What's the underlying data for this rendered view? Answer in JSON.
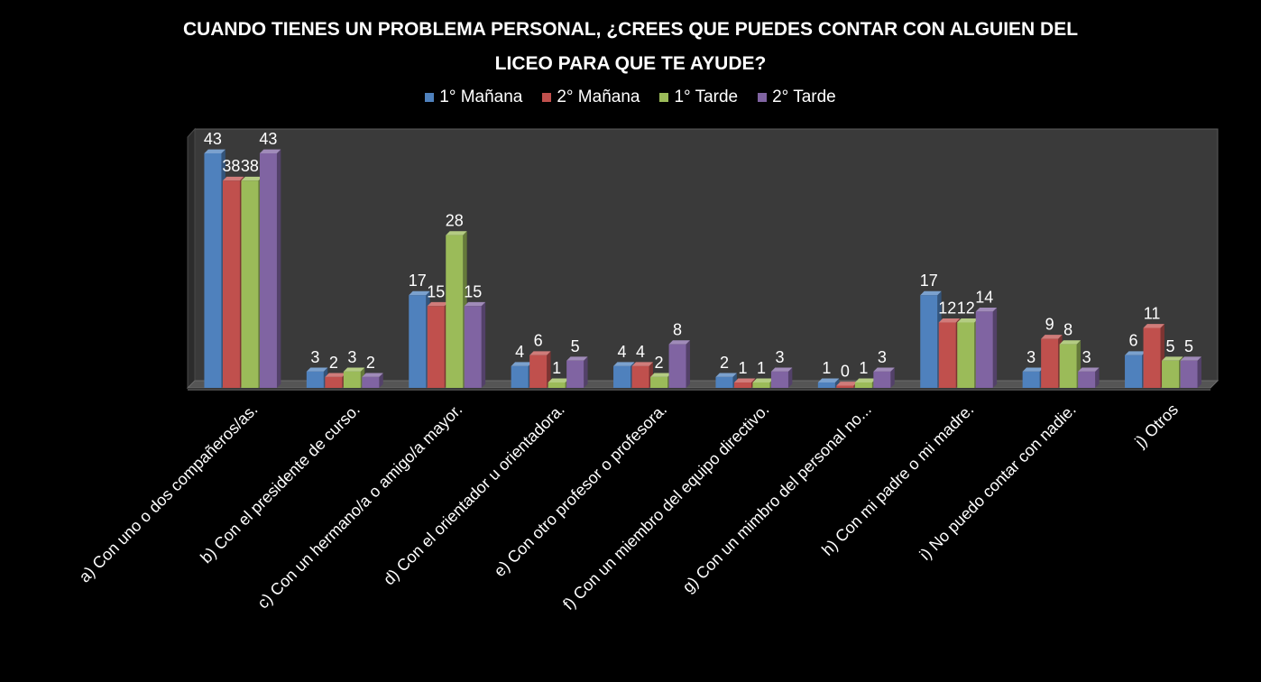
{
  "chart_data": {
    "type": "bar",
    "title_lines": [
      "CUANDO TIENES UN PROBLEMA PERSONAL, ¿CREES QUE PUEDES CONTAR CON ALGUIEN DEL",
      "LICEO PARA QUE TE AYUDE?"
    ],
    "categories": [
      "a) Con uno o dos compañeros/as.",
      "b) Con el presidente de curso.",
      "c) Con un hermano/a o amigo/a mayor.",
      "d) Con el orientador u orientadora.",
      "e) Con otro profesor o profesora.",
      "f) Con un miembro del equipo directivo.",
      "g) Con un mimbro del personal no...",
      "h) Con mi padre o mi madre.",
      "i) No puedo contar con nadie.",
      "j) Otros"
    ],
    "series": [
      {
        "name": "1° Mañana",
        "color": "#4F81BD",
        "values": [
          43,
          3,
          17,
          4,
          4,
          2,
          1,
          17,
          3,
          6
        ]
      },
      {
        "name": "2° Mañana",
        "color": "#C0504D",
        "values": [
          38,
          2,
          15,
          6,
          4,
          1,
          0,
          12,
          9,
          11
        ]
      },
      {
        "name": "1° Tarde",
        "color": "#9BBB59",
        "values": [
          38,
          3,
          28,
          1,
          2,
          1,
          1,
          12,
          8,
          5
        ]
      },
      {
        "name": "2° Tarde",
        "color": "#8064A2",
        "values": [
          43,
          2,
          15,
          5,
          8,
          3,
          3,
          14,
          3,
          5
        ]
      }
    ],
    "ylim": [
      0,
      43
    ],
    "legend_position": "top",
    "data_labels": true,
    "grid": false
  }
}
